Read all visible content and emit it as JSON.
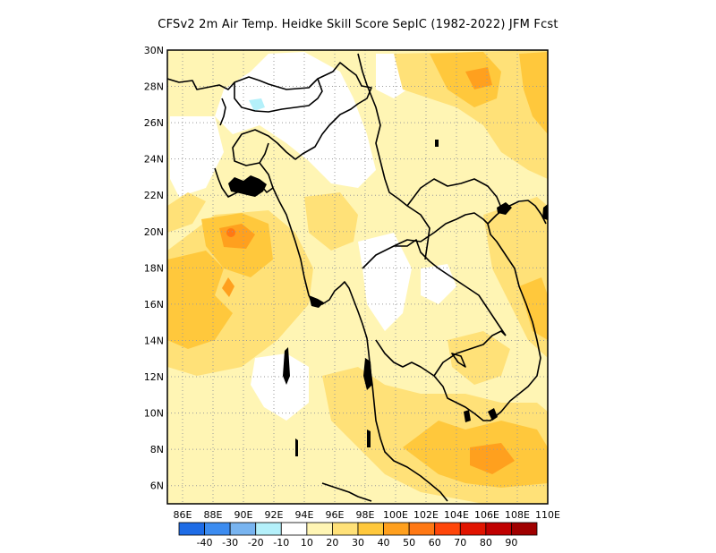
{
  "title": "CFSv2  2m Air Temp. Heidke Skill Score SepIC (1982-2022) JFM Fcst",
  "map": {
    "lat_labels": [
      "30N",
      "28N",
      "26N",
      "24N",
      "22N",
      "20N",
      "18N",
      "16N",
      "14N",
      "12N",
      "10N",
      "8N",
      "6N"
    ],
    "lon_labels": [
      "86E",
      "88E",
      "90E",
      "92E",
      "94E",
      "96E",
      "98E",
      "100E",
      "102E",
      "104E",
      "106E",
      "108E",
      "110E"
    ],
    "lat_range": [
      5,
      30
    ],
    "lon_range": [
      85,
      110
    ],
    "gridlines": "dotted"
  },
  "colorbar": {
    "labels": [
      "-40",
      "-30",
      "-20",
      "-10",
      "10",
      "20",
      "30",
      "40",
      "50",
      "60",
      "70",
      "80",
      "90"
    ],
    "colors": [
      "#1e6ce6",
      "#3c8cf0",
      "#78b4f0",
      "#b4f0fa",
      "#ffffff",
      "#fff5b4",
      "#ffe178",
      "#ffc83c",
      "#ffa01e",
      "#ff7814",
      "#ff460a",
      "#e11400",
      "#c00000",
      "#a00000"
    ]
  }
}
